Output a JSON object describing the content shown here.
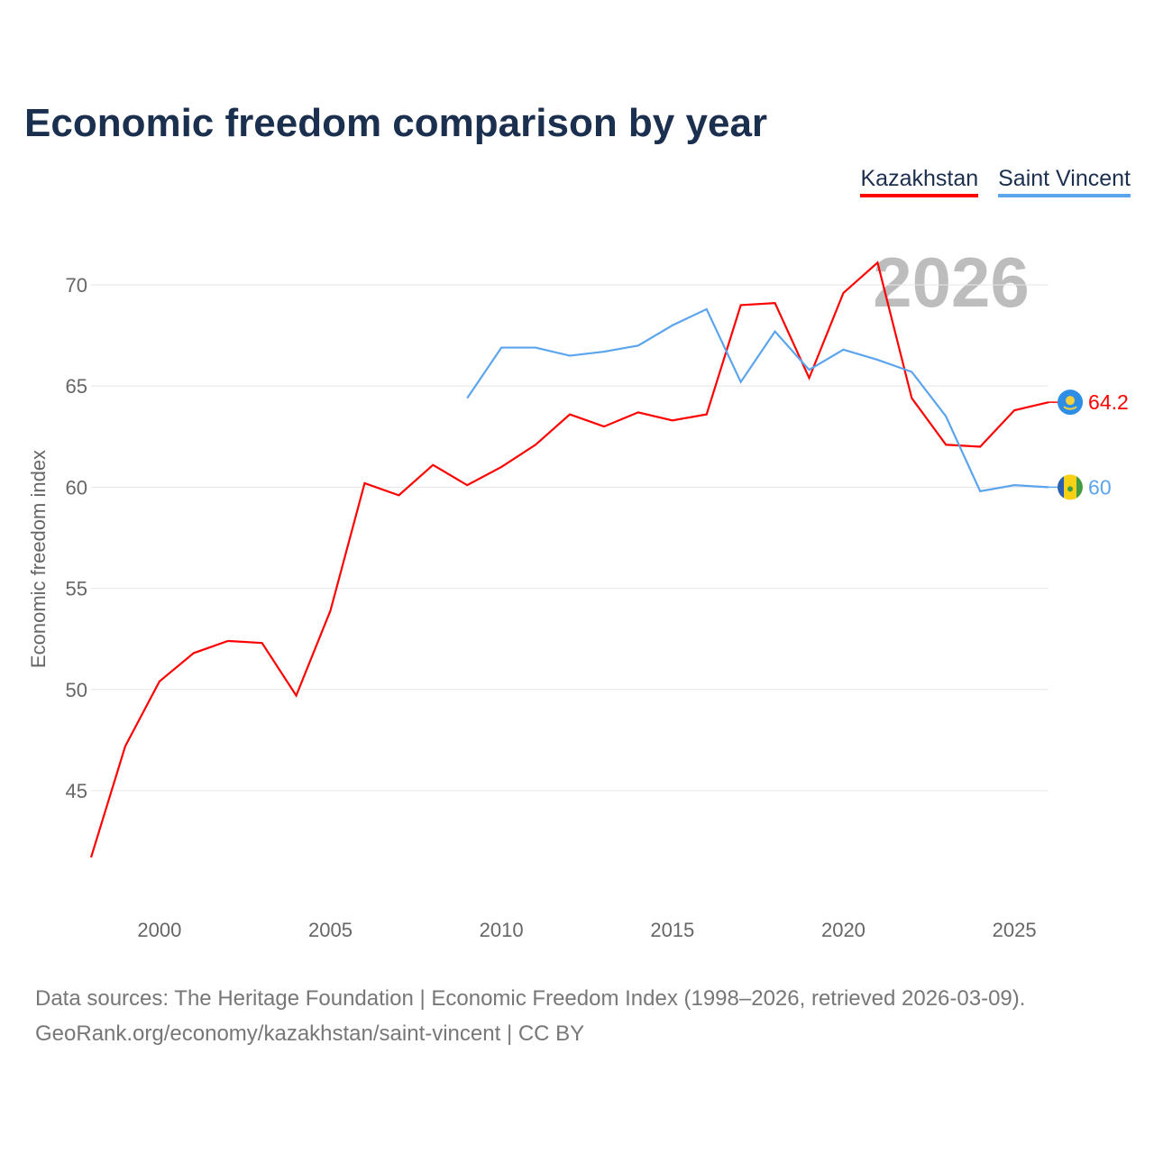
{
  "chart_data": {
    "type": "line",
    "title": "Economic freedom comparison by year",
    "ylabel": "Economic freedom index",
    "xlabel": "",
    "ylim": [
      40,
      72
    ],
    "xlim": [
      1998,
      2026
    ],
    "yticks": [
      45,
      50,
      55,
      60,
      65,
      70
    ],
    "xticks": [
      2000,
      2005,
      2010,
      2015,
      2020,
      2025
    ],
    "grid": true,
    "legend_position": "top-right",
    "watermark_year": "2026",
    "series": [
      {
        "name": "Kazakhstan",
        "color": "#ff0000",
        "end_label": "64.2",
        "x": [
          1998,
          1999,
          2000,
          2001,
          2002,
          2003,
          2004,
          2005,
          2006,
          2007,
          2008,
          2009,
          2010,
          2011,
          2012,
          2013,
          2014,
          2015,
          2016,
          2017,
          2018,
          2019,
          2020,
          2021,
          2022,
          2023,
          2024,
          2025,
          2026
        ],
        "values": [
          41.7,
          47.2,
          50.4,
          51.8,
          52.4,
          52.3,
          49.7,
          53.9,
          60.2,
          59.6,
          61.1,
          60.1,
          61.0,
          62.1,
          63.6,
          63.0,
          63.7,
          63.3,
          63.6,
          69.0,
          69.1,
          65.4,
          69.6,
          71.1,
          64.4,
          62.1,
          62.0,
          63.8,
          64.2
        ]
      },
      {
        "name": "Saint Vincent",
        "color": "#5ba4ee",
        "end_label": "60",
        "x": [
          2009,
          2010,
          2011,
          2012,
          2013,
          2014,
          2015,
          2016,
          2017,
          2018,
          2019,
          2020,
          2021,
          2022,
          2023,
          2024,
          2025,
          2026
        ],
        "values": [
          64.4,
          66.9,
          66.9,
          66.5,
          66.7,
          67.0,
          68.0,
          68.8,
          65.2,
          67.7,
          65.8,
          66.8,
          66.3,
          65.7,
          63.5,
          59.8,
          60.1,
          60.0
        ]
      }
    ]
  },
  "footer": {
    "line1": "Data sources: The Heritage Foundation | Economic Freedom Index (1998–2026, retrieved 2026-03-09).",
    "line2": "GeoRank.org/economy/kazakhstan/saint-vincent | CC BY"
  }
}
